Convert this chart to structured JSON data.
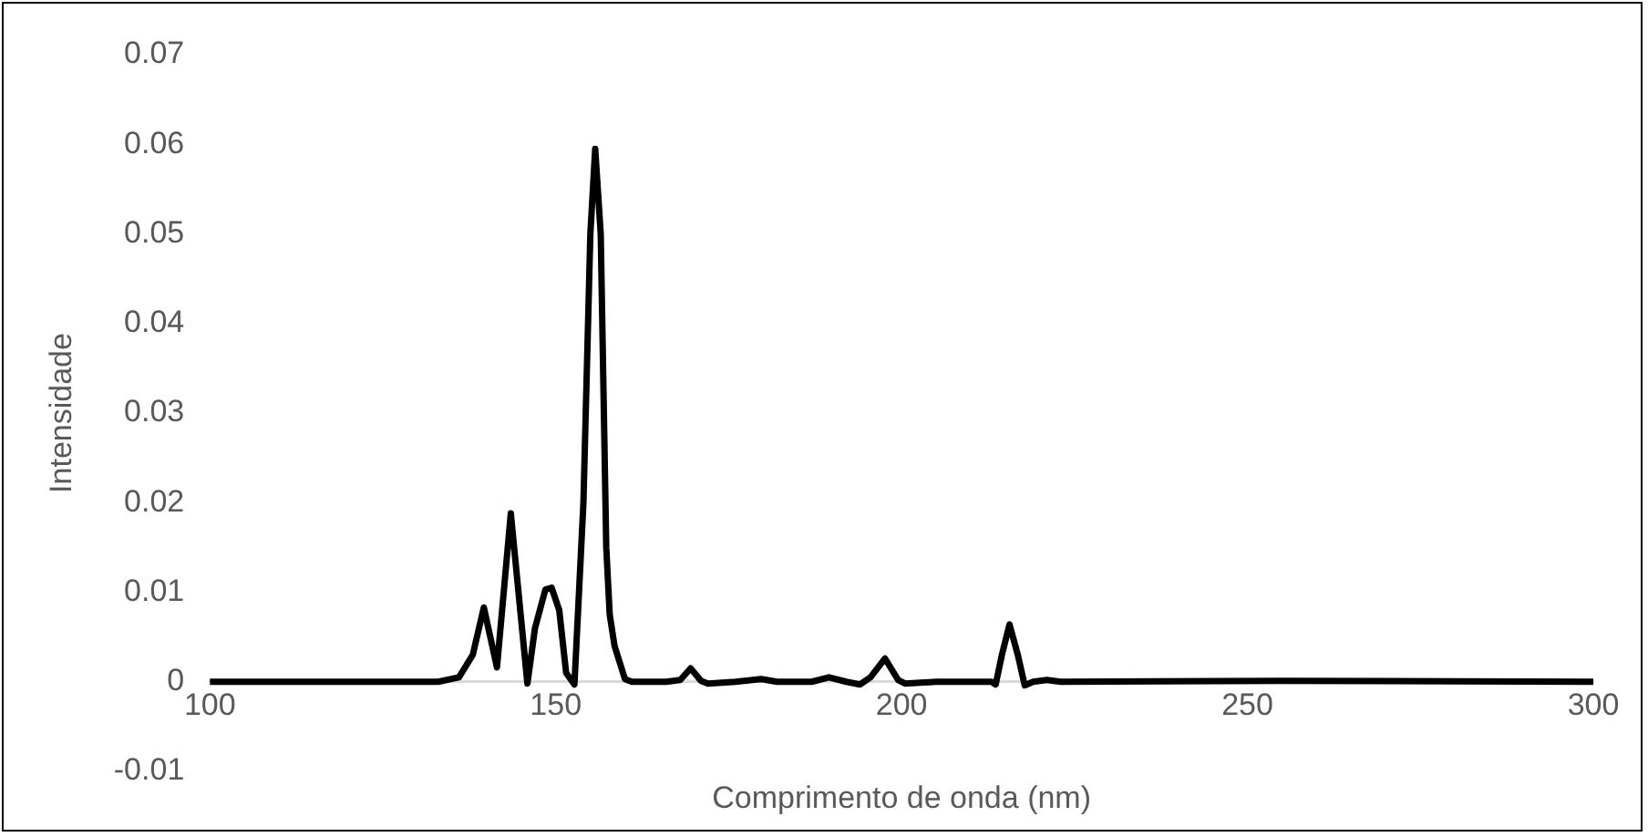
{
  "chart_data": {
    "type": "line",
    "xlabel": "Comprimento de onda (nm)",
    "ylabel": "Intensidade",
    "xlim": [
      100,
      300
    ],
    "xticks": [
      100,
      150,
      200,
      250,
      300
    ],
    "ylim": [
      -0.01,
      0.07
    ],
    "yticks": [
      -0.01,
      0,
      0.01,
      0.02,
      0.03,
      0.04,
      0.05,
      0.06,
      0.07
    ],
    "grid": false,
    "legend": false,
    "marker": "none",
    "line_style": "solid",
    "series": [
      {
        "color": "#000000",
        "x": [
          100,
          133,
          136,
          138,
          139.6,
          141.5,
          143.5,
          145.9,
          147,
          148.5,
          149.4,
          150.5,
          151.5,
          152.7,
          154,
          155,
          155.7,
          156.5,
          157.3,
          157.8,
          158.5,
          160,
          161,
          166,
          168,
          169.5,
          171,
          172,
          176,
          179.7,
          182,
          187,
          189.5,
          192,
          194,
          195.5,
          197.6,
          199.5,
          200.5,
          205,
          213,
          213.6,
          214.5,
          215.6,
          216.8,
          217.8,
          219,
          221,
          223,
          255,
          300
        ],
        "values": [
          0,
          0,
          0.0005,
          0.003,
          0.0083,
          0.0016,
          0.0188,
          -0.0002,
          0.006,
          0.0103,
          0.0105,
          0.008,
          0.001,
          -0.0003,
          0.02,
          0.05,
          0.0595,
          0.05,
          0.015,
          0.0075,
          0.004,
          0.0003,
          0,
          0,
          0.0002,
          0.0015,
          0.0001,
          -0.0002,
          0,
          0.0003,
          0,
          0,
          0.0005,
          0,
          -0.0003,
          0.0005,
          0.0026,
          0.0002,
          -0.0002,
          0,
          0,
          -0.0003,
          0.003,
          0.0064,
          0.003,
          -0.0004,
          0,
          0.0002,
          0,
          0.0001,
          0
        ]
      }
    ]
  }
}
